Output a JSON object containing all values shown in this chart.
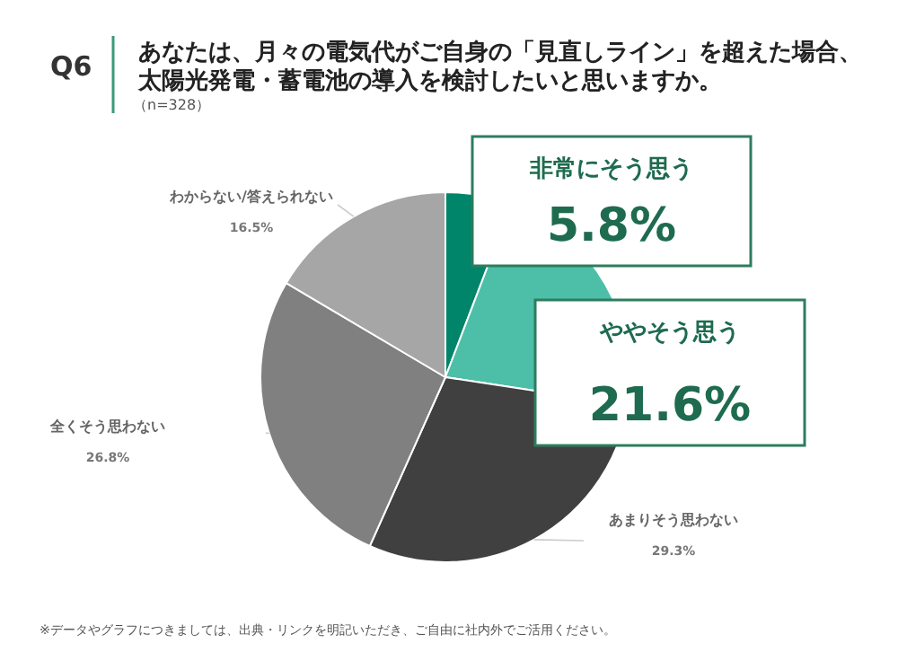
{
  "chart_data": {
    "type": "pie",
    "title": "あなたは、月々の電気代がご自身の「見直しライン」を超えた場合、太陽光発電・蓄電池の導入を検討したいと思いますか。",
    "subtitle": "（n=328）",
    "annotations": [
      "Q6",
      "※データやグラフにつきましては、出典・リンクを明記いただき、ご自由に社内外でご活用ください。"
    ],
    "categories": [
      "非常にそう思う",
      "ややそう思う",
      "あまりそう思わない",
      "全くそう思わない",
      "わからない/答えられない"
    ],
    "values": [
      5.8,
      21.6,
      29.3,
      26.8,
      16.5
    ],
    "value_labels": [
      "5.8%",
      "21.6%",
      "29.3%",
      "26.8%",
      "16.5%"
    ],
    "colors": [
      "#00856a",
      "#4dbfa8",
      "#404040",
      "#808080",
      "#a6a6a6"
    ]
  }
}
